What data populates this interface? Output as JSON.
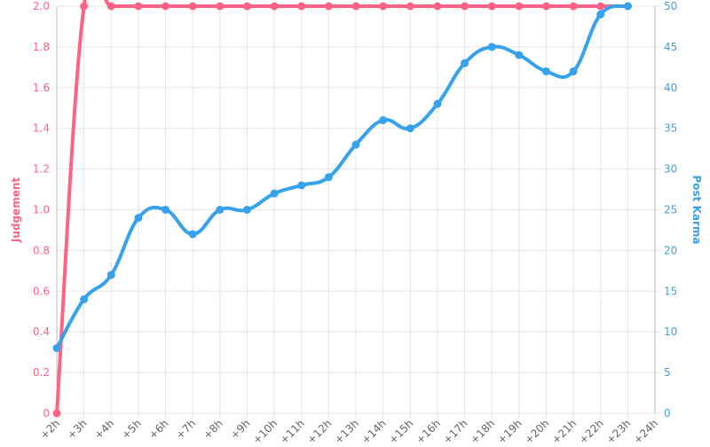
{
  "chart_data": {
    "type": "line",
    "categories": [
      "+2h",
      "+3h",
      "+4h",
      "+5h",
      "+6h",
      "+7h",
      "+8h",
      "+9h",
      "+10h",
      "+11h",
      "+12h",
      "+13h",
      "+14h",
      "+15h",
      "+16h",
      "+17h",
      "+18h",
      "+19h",
      "+20h",
      "+21h",
      "+22h",
      "+23h",
      "+24h"
    ],
    "series": [
      {
        "name": "Judgement",
        "color": "#ff6384",
        "axis": "y",
        "values": [
          0,
          2,
          2,
          2,
          2,
          2,
          2,
          2,
          2,
          2,
          2,
          2,
          2,
          2,
          2,
          2,
          2,
          2,
          2,
          2,
          2,
          2,
          null
        ]
      },
      {
        "name": "Post Karma",
        "color": "#36a2eb",
        "axis": "y2",
        "values": [
          8,
          14,
          17,
          24,
          25,
          22,
          25,
          25,
          27,
          28,
          29,
          33,
          36,
          35,
          38,
          43,
          45,
          44,
          42,
          42,
          49,
          50,
          null
        ]
      }
    ],
    "ylabel": "Judgement",
    "y2label": "Post Karma",
    "ylim": [
      0,
      2
    ],
    "yticks": [
      0,
      0.2,
      0.4,
      0.6,
      0.8,
      {
        "value": 1,
        "label": "1.0"
      },
      1.2,
      1.4,
      1.6,
      1.8,
      {
        "value": 2,
        "label": "2.0"
      }
    ],
    "y2lim": [
      0,
      50
    ],
    "y2ticks": [
      0,
      5,
      10,
      15,
      20,
      25,
      30,
      35,
      40,
      45,
      50
    ],
    "grid": true
  }
}
